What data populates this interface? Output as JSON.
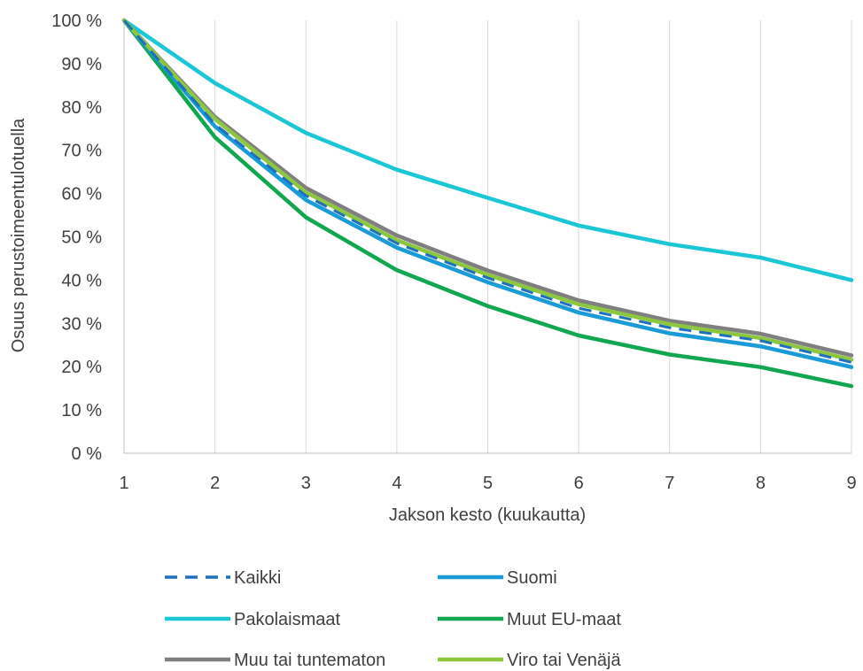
{
  "chart_data": {
    "type": "line",
    "xlabel": "Jakson kesto (kuukautta)",
    "ylabel": "Osuus perustoimeentulotuella",
    "x": [
      1,
      2,
      3,
      4,
      5,
      6,
      7,
      8,
      9
    ],
    "xlim": [
      1,
      9
    ],
    "ylim": [
      0,
      100
    ],
    "y_ticks": [
      "0 %",
      "10 %",
      "20 %",
      "30 %",
      "40 %",
      "50 %",
      "60 %",
      "70 %",
      "80 %",
      "90 %",
      "100 %"
    ],
    "grid": "vertical",
    "legend_position": "bottom",
    "series": [
      {
        "name": "Kaikki",
        "color": "#1F6FBF",
        "style": "dashed",
        "values": [
          100,
          76,
          59.5,
          48.5,
          40.5,
          33.5,
          29,
          26,
          21
        ]
      },
      {
        "name": "Suomi",
        "color": "#1A9AD6",
        "style": "solid",
        "values": [
          100,
          75.5,
          58.5,
          47.5,
          39.5,
          32.5,
          27.7,
          24.7,
          19.9
        ]
      },
      {
        "name": "Pakolaismaat",
        "color": "#1CC7D5",
        "style": "solid",
        "values": [
          100,
          85.5,
          74,
          65.5,
          59,
          52.6,
          48.3,
          45.2,
          40
        ]
      },
      {
        "name": "Muut EU-maat",
        "color": "#12A650",
        "style": "solid",
        "values": [
          100,
          73,
          54.5,
          42.3,
          34,
          27.2,
          22.8,
          19.9,
          15.5
        ]
      },
      {
        "name": "Muu tai tuntematon",
        "color": "#7F7F7F",
        "style": "solid",
        "values": [
          100,
          77.7,
          61.3,
          50.3,
          42.2,
          35.3,
          30.6,
          27.6,
          22.6
        ]
      },
      {
        "name": "Viro tai Venäjä",
        "color": "#8DC63F",
        "style": "solid",
        "values": [
          100,
          77.2,
          60.3,
          49.2,
          41.2,
          34.4,
          29.8,
          26.6,
          21.6
        ]
      }
    ]
  }
}
